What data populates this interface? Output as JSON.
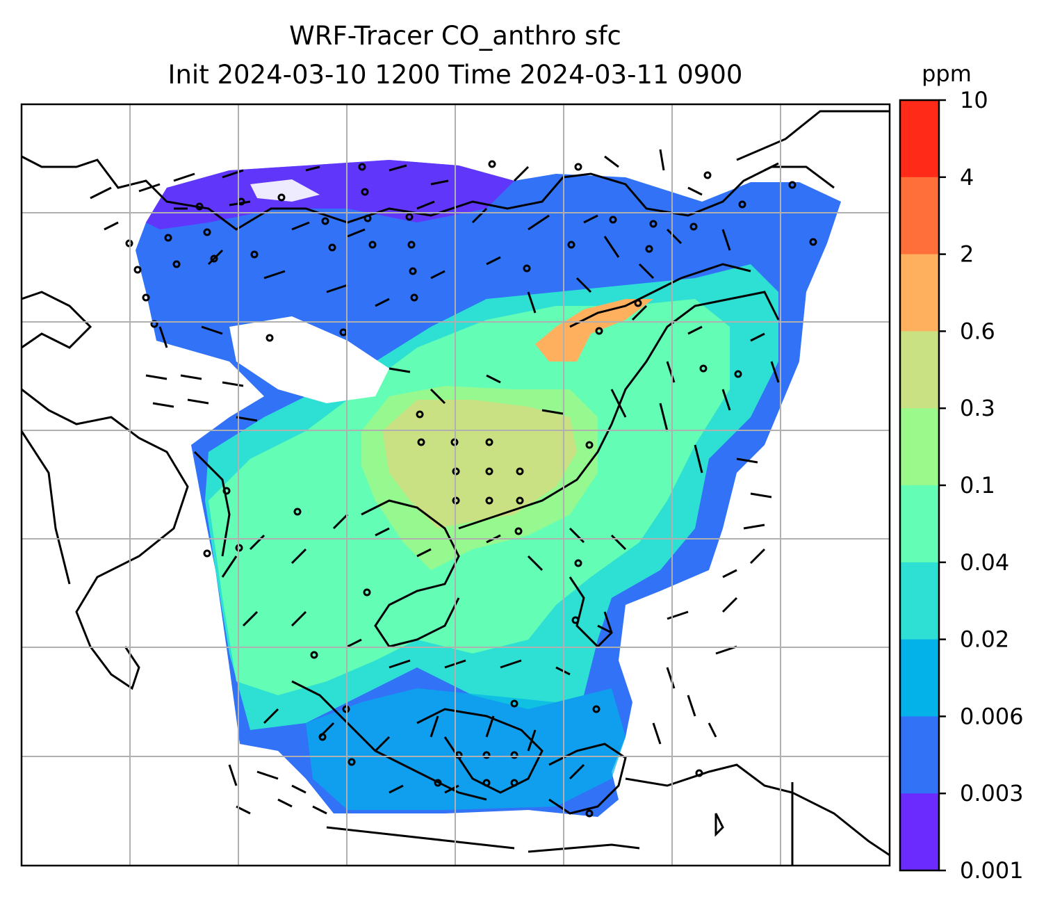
{
  "title": {
    "line1": "WRF-Tracer CO_anthro sfc",
    "line2": "Init 2024-03-10 1200 Time 2024-03-11 0900"
  },
  "colorbar": {
    "unit_label": "ppm",
    "tick_labels": [
      "10",
      "4",
      "2",
      "0.6",
      "0.3",
      "0.1",
      "0.04",
      "0.02",
      "0.006",
      "0.003",
      "0.001"
    ],
    "colors_top_to_bottom": [
      "#ff2a17",
      "#ff6f3a",
      "#ffb05e",
      "#c9e183",
      "#9bf88b",
      "#63fdb6",
      "#2ee0d3",
      "#03b2e9",
      "#3172f7",
      "#6a2bfc"
    ]
  },
  "map": {
    "gridlines": true,
    "wind_barbs": true,
    "field": "CO_anthro"
  }
}
